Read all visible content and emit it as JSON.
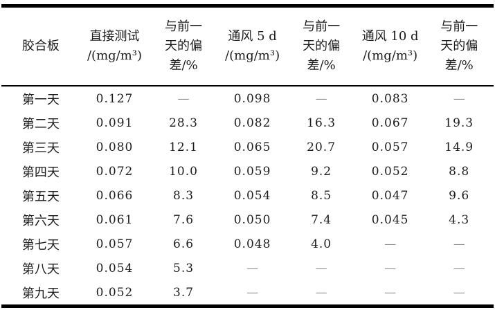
{
  "chart_data": {
    "type": "table",
    "title": "",
    "columns": [
      "胶合板",
      "直接测试/(mg/m³)",
      "与前一天的偏差/%",
      "通风 5 d/(mg/m³)",
      "与前一天的偏差/%",
      "通风 10 d/(mg/m³)",
      "与前一天的偏差/%"
    ],
    "rows": [
      [
        "第一天",
        0.127,
        null,
        0.098,
        null,
        0.083,
        null
      ],
      [
        "第二天",
        0.091,
        28.3,
        0.082,
        16.3,
        0.067,
        19.3
      ],
      [
        "第三天",
        0.08,
        12.1,
        0.065,
        20.7,
        0.057,
        14.9
      ],
      [
        "第四天",
        0.072,
        10.0,
        0.059,
        9.2,
        0.052,
        8.8
      ],
      [
        "第五天",
        0.066,
        8.3,
        0.054,
        8.5,
        0.047,
        9.6
      ],
      [
        "第六天",
        0.061,
        7.6,
        0.05,
        7.4,
        0.045,
        4.3
      ],
      [
        "第七天",
        0.057,
        6.6,
        0.048,
        4.0,
        null,
        null
      ],
      [
        "第八天",
        0.054,
        5.3,
        null,
        null,
        null,
        null
      ],
      [
        "第九天",
        0.052,
        3.7,
        null,
        null,
        null,
        null
      ]
    ],
    "missing_value_symbol": "—"
  },
  "table": {
    "headers": [
      {
        "lines": [
          "胶合板"
        ]
      },
      {
        "lines": [
          "直接测试",
          "/(mg/m³)"
        ]
      },
      {
        "lines": [
          "与前一",
          "天的偏",
          "差/%"
        ]
      },
      {
        "lines": [
          "通风 5 d",
          "/(mg/m³)"
        ]
      },
      {
        "lines": [
          "与前一",
          "天的偏",
          "差/%"
        ]
      },
      {
        "lines": [
          "通风 10 d",
          "/(mg/m³)"
        ]
      },
      {
        "lines": [
          "与前一",
          "天的偏",
          "差/%"
        ]
      }
    ],
    "rows": [
      {
        "cells": [
          "第一天",
          "0.127",
          "—",
          "0.098",
          "—",
          "0.083",
          "—"
        ]
      },
      {
        "cells": [
          "第二天",
          "0.091",
          "28.3",
          "0.082",
          "16.3",
          "0.067",
          "19.3"
        ]
      },
      {
        "cells": [
          "第三天",
          "0.080",
          "12.1",
          "0.065",
          "20.7",
          "0.057",
          "14.9"
        ]
      },
      {
        "cells": [
          "第四天",
          "0.072",
          "10.0",
          "0.059",
          "9.2",
          "0.052",
          "8.8"
        ]
      },
      {
        "cells": [
          "第五天",
          "0.066",
          "8.3",
          "0.054",
          "8.5",
          "0.047",
          "9.6"
        ]
      },
      {
        "cells": [
          "第六天",
          "0.061",
          "7.6",
          "0.050",
          "7.4",
          "0.045",
          "4.3"
        ]
      },
      {
        "cells": [
          "第七天",
          "0.057",
          "6.6",
          "0.048",
          "4.0",
          "—",
          "—"
        ]
      },
      {
        "cells": [
          "第八天",
          "0.054",
          "5.3",
          "—",
          "—",
          "—",
          "—"
        ]
      },
      {
        "cells": [
          "第九天",
          "0.052",
          "3.7",
          "—",
          "—",
          "—",
          "—"
        ]
      }
    ]
  },
  "colors": {
    "text": "#1c1c1c",
    "dash": "#8a8a8a",
    "border": "#000000",
    "background": "#ffffff"
  }
}
